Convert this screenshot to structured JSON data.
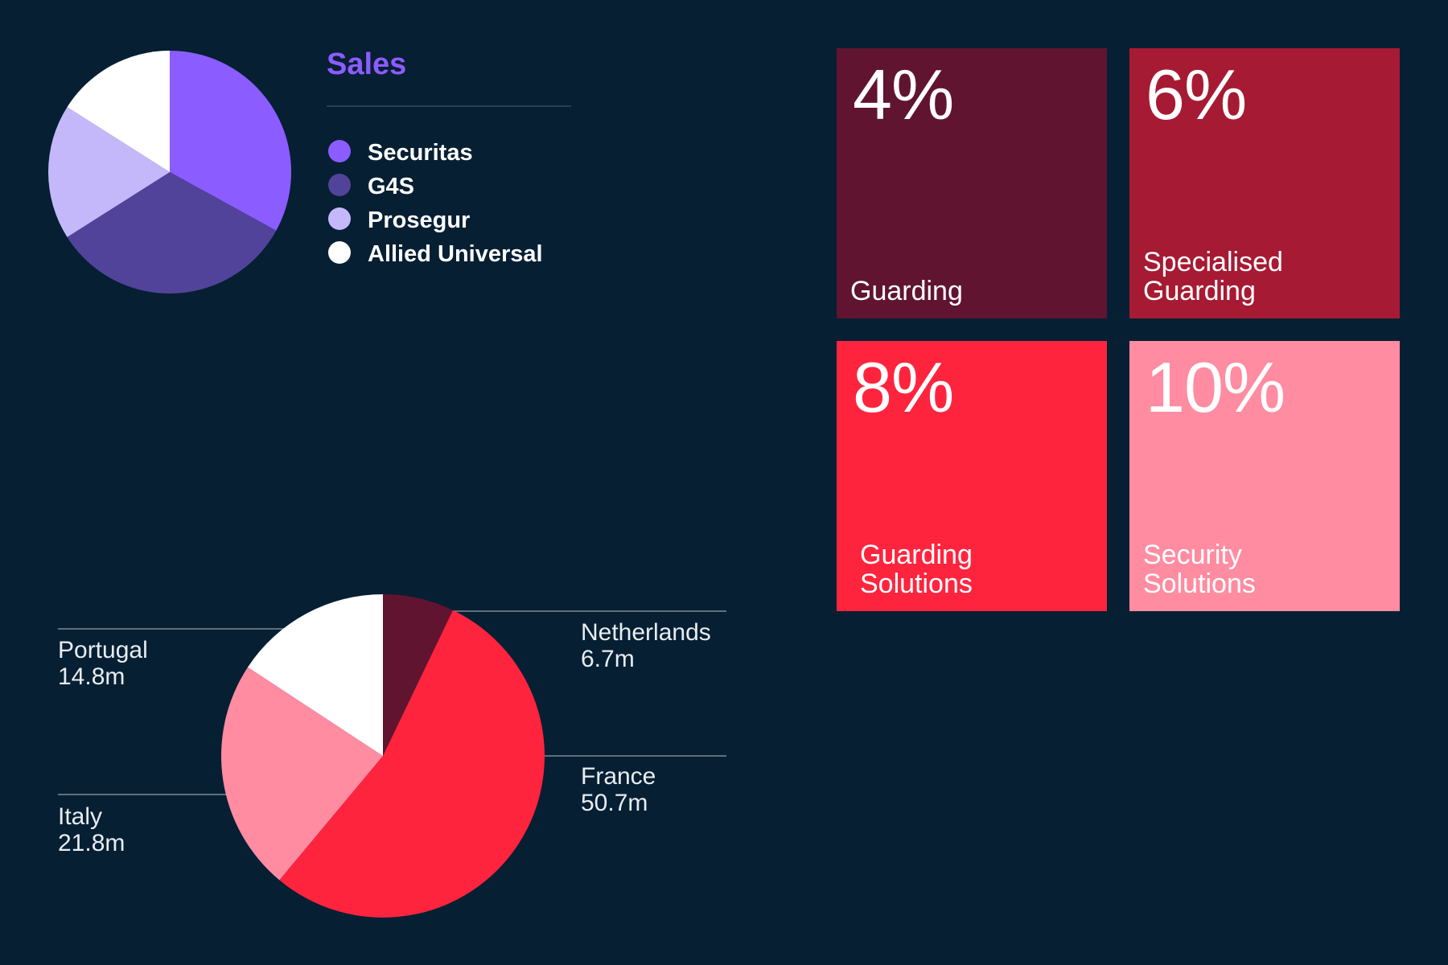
{
  "chart_data": [
    {
      "type": "pie",
      "title": "Sales",
      "categories": [
        "Securitas",
        "G4S",
        "Prosegur",
        "Allied Universal"
      ],
      "values": [
        33,
        33,
        18,
        16
      ],
      "colors": [
        "#8b5cff",
        "#52439a",
        "#c4b8fb",
        "#ffffff"
      ],
      "legend_position": "right"
    },
    {
      "type": "pie",
      "title": "",
      "categories": [
        "Netherlands",
        "France",
        "Italy",
        "Portugal"
      ],
      "values": [
        6.7,
        50.7,
        21.8,
        14.8
      ],
      "value_labels": [
        "6.7m",
        "50.7m",
        "21.8m",
        "14.8m"
      ],
      "colors": [
        "#611430",
        "#ff243e",
        "#ff8ca1",
        "#ffffff"
      ]
    }
  ],
  "tiles": [
    {
      "percent": "4%",
      "label_lines": [
        "Guarding"
      ],
      "color": "#611430"
    },
    {
      "percent": "6%",
      "label_lines": [
        "Specialised",
        "Guarding"
      ],
      "color": "#a71a33"
    },
    {
      "percent": "8%",
      "label_lines": [
        "Guarding",
        "Solutions"
      ],
      "color": "#ff243e"
    },
    {
      "percent": "10%",
      "label_lines": [
        "Security",
        "Solutions"
      ],
      "color": "#ff8ca1"
    }
  ],
  "colors": {
    "background": "#061f33",
    "accent": "#8b5cff",
    "leader_line": "#7d8a96"
  }
}
